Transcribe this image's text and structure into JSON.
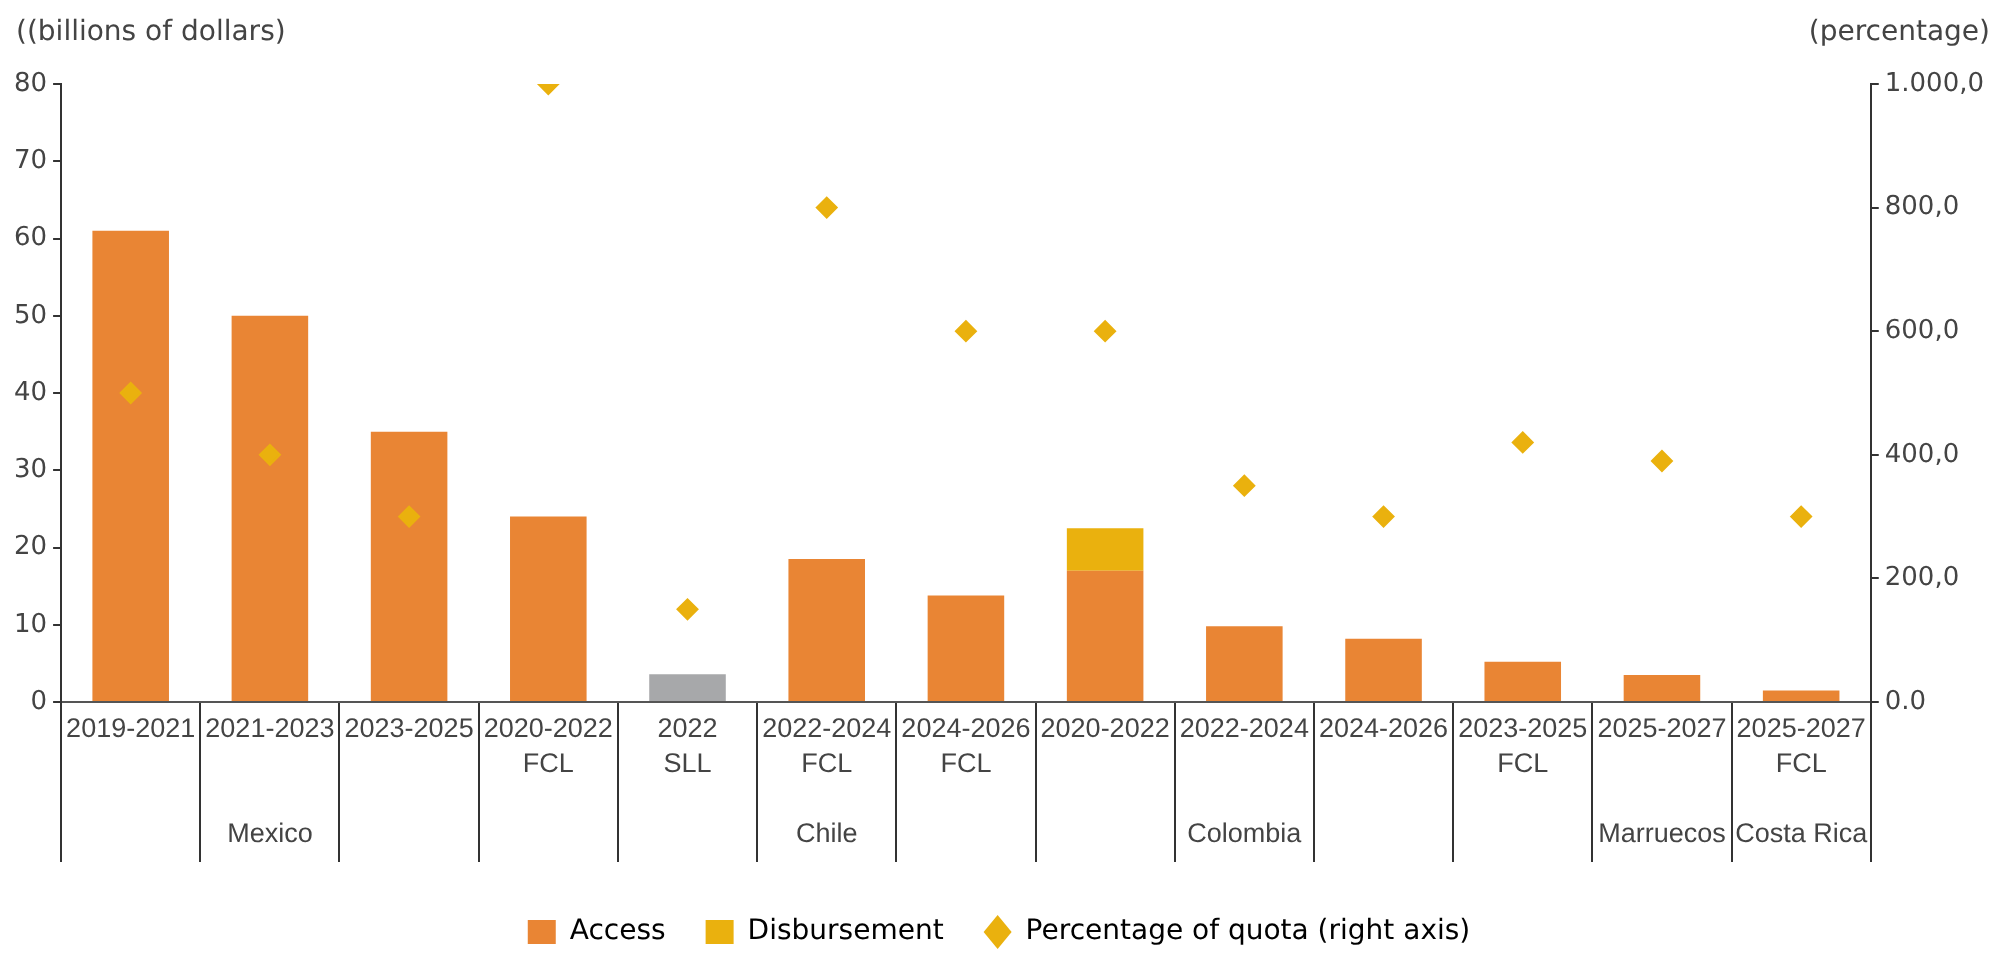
{
  "chart_data": {
    "type": "bar",
    "stacked": true,
    "ylabel": "((billions of dollars)",
    "y2label": "(percentage)",
    "categories": [
      "2019-2021",
      "2021-2023\n\n\nMexico",
      "2023-2025",
      "2020-2022\nFCL",
      "2022\nSLL",
      "2022-2024\nFCL\n\nChile",
      "2024-2026\nFCL",
      "2020-2022",
      "2022-2024\n\n\nColombia",
      "2024-2026",
      "2023-2025\nFCL",
      "2025-2027\n\n\nMarruecos",
      "2025-2027\nFCL\n\nCosta Rica"
    ],
    "series": [
      {
        "name": "Access",
        "color": "#e98534",
        "colors": [
          "#e98534",
          "#e98534",
          "#e98534",
          "#e98534",
          "#a7a8aa",
          "#e98534",
          "#e98534",
          "#e98534",
          "#e98534",
          "#e98534",
          "#e98534",
          "#e98534",
          "#e98534"
        ],
        "values": [
          61,
          50,
          35,
          24,
          3.6,
          18.5,
          13.8,
          17,
          9.8,
          8.2,
          5.2,
          3.5,
          1.5
        ]
      },
      {
        "name": "Disbursement",
        "type": "bar",
        "color": "#eab10e",
        "values": [
          null,
          null,
          null,
          null,
          null,
          null,
          null,
          5.5,
          null,
          null,
          null,
          null,
          null
        ]
      },
      {
        "name": "Percentage of quota (right axis)",
        "type": "scatter",
        "axis": "y2",
        "color": "#eab10e",
        "values": [
          500,
          400,
          300,
          1000,
          150,
          800,
          600,
          600,
          350,
          300,
          420,
          390,
          300
        ]
      }
    ],
    "ylim": [
      0,
      80
    ],
    "yticks": [
      0,
      10,
      20,
      30,
      40,
      50,
      60,
      70,
      80
    ],
    "y2lim": [
      0,
      1000
    ],
    "y2ticks": [
      {
        "value": 0,
        "label": "0.0"
      },
      {
        "value": 200,
        "label": "200,0"
      },
      {
        "value": 400,
        "label": "400,0"
      },
      {
        "value": 600,
        "label": "600,0"
      },
      {
        "value": 800,
        "label": "800,0"
      },
      {
        "value": 1000,
        "label": "1.000,0"
      }
    ],
    "marker": "diamond",
    "grid": false,
    "legend": "bottom"
  }
}
